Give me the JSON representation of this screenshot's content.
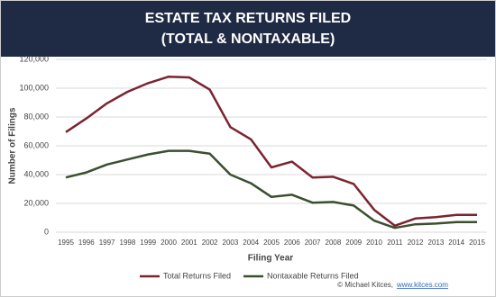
{
  "chart_data": {
    "type": "line",
    "title": "ESTATE TAX RETURNS FILED",
    "subtitle": "(TOTAL & NONTAXABLE)",
    "y_label": "Number of Filings",
    "x_label": "Filing Year",
    "source": "© Michael Kitces,",
    "source_link": "www.kitces.com",
    "categories": [
      "1995",
      "1996",
      "1997",
      "1998",
      "1999",
      "2000",
      "2001",
      "2002",
      "2003",
      "2004",
      "2005",
      "2006",
      "2007",
      "2008",
      "2009",
      "2010",
      "2011",
      "2012",
      "2013",
      "2014",
      "2015"
    ],
    "series": [
      {
        "name": "Total Returns Filed",
        "color": "#7b2430",
        "values": [
          69500,
          79000,
          89500,
          97500,
          103500,
          108000,
          107500,
          99000,
          73000,
          64500,
          45000,
          49000,
          38000,
          38500,
          33500,
          15500,
          4500,
          9500,
          10500,
          12000,
          12000
        ]
      },
      {
        "name": "Nontaxable Returns Filed",
        "color": "#3b4f2f",
        "values": [
          38000,
          41500,
          47000,
          50500,
          54000,
          56500,
          56500,
          54500,
          40000,
          34000,
          24500,
          26000,
          20500,
          21000,
          18500,
          8000,
          3000,
          5500,
          6000,
          7000,
          7000
        ]
      }
    ],
    "ylim": [
      0,
      120000
    ],
    "yticks": [
      0,
      {
        "value": 20000,
        "label": "20,000"
      },
      {
        "value": 40000,
        "label": "40,000"
      },
      {
        "value": 60000,
        "label": "60,000"
      },
      {
        "value": 80000,
        "label": "80,000"
      },
      {
        "value": 100000,
        "label": "100,000"
      },
      {
        "value": 120000,
        "label": "120,000"
      }
    ],
    "grid": true,
    "legend": "bottom"
  }
}
